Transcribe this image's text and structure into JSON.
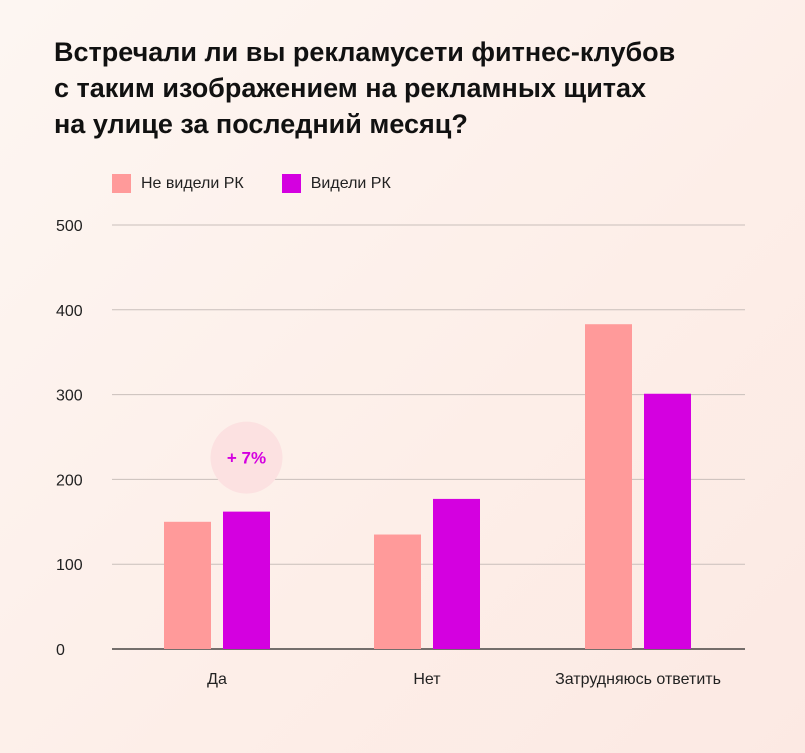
{
  "title_lines": [
    "Встречали ли вы рекламусети фитнес-клубов",
    "с таким изображением на рекламных щитах",
    "на улице за последний месяц?"
  ],
  "colors": {
    "not_seen": "#ff9a9a",
    "seen": "#d400e0",
    "annotation_bg": "#fce1e1",
    "annotation_text": "#d400e0",
    "grid": "#c9bfbb",
    "axis": "#222222"
  },
  "chart_data": {
    "type": "bar",
    "title": "Встречали ли вы рекламусети фитнес-клубов с таким изображением на рекламных щитах на улице за последний месяц?",
    "categories": [
      "Да",
      "Нет",
      "Затрудняюсь ответить"
    ],
    "series": [
      {
        "name": "Не видели РК",
        "values": [
          150,
          135,
          383
        ]
      },
      {
        "name": "Видели РК",
        "values": [
          162,
          177,
          301
        ]
      }
    ],
    "ylim": [
      0,
      500
    ],
    "yticks": [
      0,
      100,
      200,
      300,
      400,
      500
    ],
    "grid": true,
    "legend": "top-left",
    "annotations": [
      {
        "category": "Да",
        "text": "+ 7%"
      }
    ]
  }
}
